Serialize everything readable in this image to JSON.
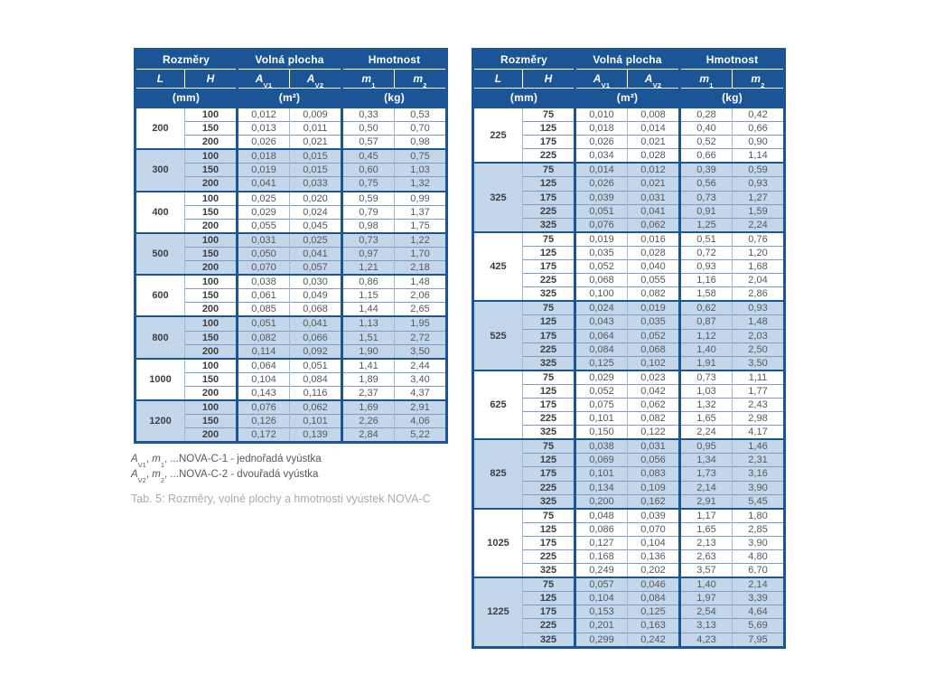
{
  "header": {
    "dimensions": "Rozměry",
    "free_area": "Volná plocha",
    "weight": "Hmotnost",
    "L": "L",
    "H": "H",
    "A": "A",
    "sub_v1": "V1",
    "sub_v2": "V2",
    "m": "m",
    "sub_1": "1",
    "sub_2": "2",
    "unit_mm": "(mm)",
    "unit_m2": "(m²)",
    "unit_kg": "(kg)"
  },
  "left_table": {
    "groups": [
      {
        "L": "200",
        "rows": [
          {
            "h": "100",
            "av1": "0,012",
            "av2": "0,009",
            "m1": "0,33",
            "m2": "0,53"
          },
          {
            "h": "150",
            "av1": "0,013",
            "av2": "0,011",
            "m1": "0,50",
            "m2": "0,70"
          },
          {
            "h": "200",
            "av1": "0,026",
            "av2": "0,021",
            "m1": "0,57",
            "m2": "0,98"
          }
        ]
      },
      {
        "L": "300",
        "rows": [
          {
            "h": "100",
            "av1": "0,018",
            "av2": "0,015",
            "m1": "0,45",
            "m2": "0,75"
          },
          {
            "h": "150",
            "av1": "0,019",
            "av2": "0,015",
            "m1": "0,60",
            "m2": "1,03"
          },
          {
            "h": "200",
            "av1": "0,041",
            "av2": "0,033",
            "m1": "0,75",
            "m2": "1,32"
          }
        ]
      },
      {
        "L": "400",
        "rows": [
          {
            "h": "100",
            "av1": "0,025",
            "av2": "0,020",
            "m1": "0,59",
            "m2": "0,99"
          },
          {
            "h": "150",
            "av1": "0,029",
            "av2": "0,024",
            "m1": "0,79",
            "m2": "1,37"
          },
          {
            "h": "200",
            "av1": "0,055",
            "av2": "0,045",
            "m1": "0,98",
            "m2": "1,75"
          }
        ]
      },
      {
        "L": "500",
        "rows": [
          {
            "h": "100",
            "av1": "0,031",
            "av2": "0,025",
            "m1": "0,73",
            "m2": "1,22"
          },
          {
            "h": "150",
            "av1": "0,050",
            "av2": "0,041",
            "m1": "0,97",
            "m2": "1,70"
          },
          {
            "h": "200",
            "av1": "0,070",
            "av2": "0,057",
            "m1": "1,21",
            "m2": "2,18"
          }
        ]
      },
      {
        "L": "600",
        "rows": [
          {
            "h": "100",
            "av1": "0,038",
            "av2": "0,030",
            "m1": "0,86",
            "m2": "1,48"
          },
          {
            "h": "150",
            "av1": "0,061",
            "av2": "0,049",
            "m1": "1,15",
            "m2": "2,06"
          },
          {
            "h": "200",
            "av1": "0,085",
            "av2": "0,068",
            "m1": "1,44",
            "m2": "2,65"
          }
        ]
      },
      {
        "L": "800",
        "rows": [
          {
            "h": "100",
            "av1": "0,051",
            "av2": "0,041",
            "m1": "1,13",
            "m2": "1,95"
          },
          {
            "h": "150",
            "av1": "0,082",
            "av2": "0,066",
            "m1": "1,51",
            "m2": "2,72"
          },
          {
            "h": "200",
            "av1": "0,114",
            "av2": "0,092",
            "m1": "1,90",
            "m2": "3,50"
          }
        ]
      },
      {
        "L": "1000",
        "rows": [
          {
            "h": "100",
            "av1": "0,064",
            "av2": "0,051",
            "m1": "1,41",
            "m2": "2,44"
          },
          {
            "h": "150",
            "av1": "0,104",
            "av2": "0,084",
            "m1": "1,89",
            "m2": "3,40"
          },
          {
            "h": "200",
            "av1": "0,143",
            "av2": "0,116",
            "m1": "2,37",
            "m2": "4,37"
          }
        ]
      },
      {
        "L": "1200",
        "rows": [
          {
            "h": "100",
            "av1": "0,076",
            "av2": "0,062",
            "m1": "1,69",
            "m2": "2,91"
          },
          {
            "h": "150",
            "av1": "0,126",
            "av2": "0,101",
            "m1": "2,26",
            "m2": "4,06"
          },
          {
            "h": "200",
            "av1": "0,172",
            "av2": "0,139",
            "m1": "2,84",
            "m2": "5,22"
          }
        ]
      }
    ]
  },
  "right_table": {
    "groups": [
      {
        "L": "225",
        "rows": [
          {
            "h": "75",
            "av1": "0,010",
            "av2": "0,008",
            "m1": "0,28",
            "m2": "0,42"
          },
          {
            "h": "125",
            "av1": "0,018",
            "av2": "0,014",
            "m1": "0,40",
            "m2": "0,66"
          },
          {
            "h": "175",
            "av1": "0,026",
            "av2": "0,021",
            "m1": "0,52",
            "m2": "0,90"
          },
          {
            "h": "225",
            "av1": "0,034",
            "av2": "0,028",
            "m1": "0,66",
            "m2": "1,14"
          }
        ]
      },
      {
        "L": "325",
        "rows": [
          {
            "h": "75",
            "av1": "0,014",
            "av2": "0,012",
            "m1": "0,39",
            "m2": "0,59"
          },
          {
            "h": "125",
            "av1": "0,026",
            "av2": "0,021",
            "m1": "0,56",
            "m2": "0,93"
          },
          {
            "h": "175",
            "av1": "0,039",
            "av2": "0,031",
            "m1": "0,73",
            "m2": "1,27"
          },
          {
            "h": "225",
            "av1": "0,051",
            "av2": "0,041",
            "m1": "0,91",
            "m2": "1,59"
          },
          {
            "h": "325",
            "av1": "0,076",
            "av2": "0,062",
            "m1": "1,25",
            "m2": "2,24"
          }
        ]
      },
      {
        "L": "425",
        "rows": [
          {
            "h": "75",
            "av1": "0,019",
            "av2": "0,016",
            "m1": "0,51",
            "m2": "0,76"
          },
          {
            "h": "125",
            "av1": "0,035",
            "av2": "0,028",
            "m1": "0,72",
            "m2": "1,20"
          },
          {
            "h": "175",
            "av1": "0,052",
            "av2": "0,040",
            "m1": "0,93",
            "m2": "1,68"
          },
          {
            "h": "225",
            "av1": "0,068",
            "av2": "0,055",
            "m1": "1,16",
            "m2": "2,04"
          },
          {
            "h": "325",
            "av1": "0,100",
            "av2": "0,082",
            "m1": "1,58",
            "m2": "2,86"
          }
        ]
      },
      {
        "L": "525",
        "rows": [
          {
            "h": "75",
            "av1": "0,024",
            "av2": "0,019",
            "m1": "0,62",
            "m2": "0,93"
          },
          {
            "h": "125",
            "av1": "0,043",
            "av2": "0,035",
            "m1": "0,87",
            "m2": "1,48"
          },
          {
            "h": "175",
            "av1": "0,064",
            "av2": "0,052",
            "m1": "1,12",
            "m2": "2,03"
          },
          {
            "h": "225",
            "av1": "0,084",
            "av2": "0,068",
            "m1": "1,40",
            "m2": "2,50"
          },
          {
            "h": "325",
            "av1": "0,125",
            "av2": "0,102",
            "m1": "1,91",
            "m2": "3,50"
          }
        ]
      },
      {
        "L": "625",
        "rows": [
          {
            "h": "75",
            "av1": "0,029",
            "av2": "0,023",
            "m1": "0,73",
            "m2": "1,11"
          },
          {
            "h": "125",
            "av1": "0,052",
            "av2": "0,042",
            "m1": "1,03",
            "m2": "1,77"
          },
          {
            "h": "175",
            "av1": "0,075",
            "av2": "0,062",
            "m1": "1,32",
            "m2": "2,43"
          },
          {
            "h": "225",
            "av1": "0,101",
            "av2": "0,082",
            "m1": "1,65",
            "m2": "2,98"
          },
          {
            "h": "325",
            "av1": "0,150",
            "av2": "0,122",
            "m1": "2,24",
            "m2": "4,17"
          }
        ]
      },
      {
        "L": "825",
        "rows": [
          {
            "h": "75",
            "av1": "0,038",
            "av2": "0,031",
            "m1": "0,95",
            "m2": "1,46"
          },
          {
            "h": "125",
            "av1": "0,069",
            "av2": "0,056",
            "m1": "1,34",
            "m2": "2,31"
          },
          {
            "h": "175",
            "av1": "0,101",
            "av2": "0,083",
            "m1": "1,73",
            "m2": "3,16"
          },
          {
            "h": "225",
            "av1": "0,134",
            "av2": "0,109",
            "m1": "2,14",
            "m2": "3,90"
          },
          {
            "h": "325",
            "av1": "0,200",
            "av2": "0,162",
            "m1": "2,91",
            "m2": "5,45"
          }
        ]
      },
      {
        "L": "1025",
        "rows": [
          {
            "h": "75",
            "av1": "0,048",
            "av2": "0,039",
            "m1": "1,17",
            "m2": "1,80"
          },
          {
            "h": "125",
            "av1": "0,086",
            "av2": "0,070",
            "m1": "1,65",
            "m2": "2,85"
          },
          {
            "h": "175",
            "av1": "0,127",
            "av2": "0,104",
            "m1": "2,13",
            "m2": "3,90"
          },
          {
            "h": "225",
            "av1": "0,168",
            "av2": "0,136",
            "m1": "2,63",
            "m2": "4,80"
          },
          {
            "h": "325",
            "av1": "0,249",
            "av2": "0,202",
            "m1": "3,57",
            "m2": "6,70"
          }
        ]
      },
      {
        "L": "1225",
        "rows": [
          {
            "h": "75",
            "av1": "0,057",
            "av2": "0,046",
            "m1": "1,40",
            "m2": "2,14"
          },
          {
            "h": "125",
            "av1": "0,104",
            "av2": "0,084",
            "m1": "1,97",
            "m2": "3,39"
          },
          {
            "h": "175",
            "av1": "0,153",
            "av2": "0,125",
            "m1": "2,54",
            "m2": "4,64"
          },
          {
            "h": "225",
            "av1": "0,201",
            "av2": "0,163",
            "m1": "3,13",
            "m2": "5,69"
          },
          {
            "h": "325",
            "av1": "0,299",
            "av2": "0,242",
            "m1": "4,23",
            "m2": "7,95"
          }
        ]
      }
    ]
  },
  "footnotes": [
    {
      "segments": [
        [
          "i",
          "A"
        ],
        [
          "sub",
          "V1"
        ],
        [
          "t",
          ", "
        ],
        [
          "i",
          "m"
        ],
        [
          "sub",
          "1"
        ],
        [
          "t",
          ", ...NOVA-C-1 - jednořadá vyústka"
        ]
      ]
    },
    {
      "segments": [
        [
          "i",
          "A"
        ],
        [
          "sub",
          "V2"
        ],
        [
          "t",
          ", "
        ],
        [
          "i",
          "m"
        ],
        [
          "sub",
          "2"
        ],
        [
          "t",
          ", ...NOVA-C-2 - dvouřadá vyústka"
        ]
      ]
    }
  ],
  "caption": "Tab. 5: Rozměry, volné plochy a hmotnosti vyústek NOVA-C",
  "colors": {
    "header_bg": "#1c5596",
    "border_dark": "#1c5596",
    "band_blue": "#c4d7ea",
    "band_white": "#ffffff",
    "data_text": "#55575c",
    "caption_text": "#a6acb4"
  }
}
